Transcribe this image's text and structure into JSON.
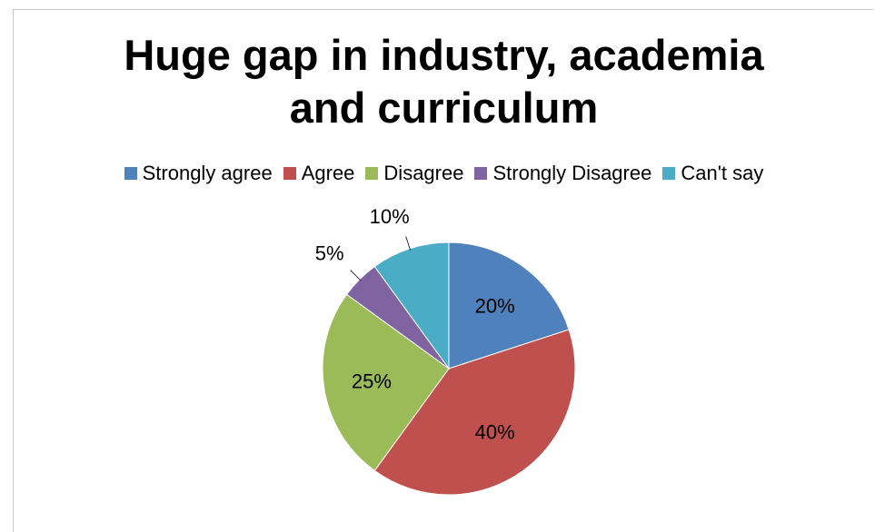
{
  "chart_data": {
    "type": "pie",
    "title_line1": "Huge gap in industry, academia",
    "title_line2": "and curriculum",
    "legend_position": "top",
    "slices": [
      {
        "label": "Strongly agree",
        "value": 20,
        "display": "20%",
        "color": "#4F81BD"
      },
      {
        "label": "Agree",
        "value": 40,
        "display": "40%",
        "color": "#C0504D"
      },
      {
        "label": "Disagree",
        "value": 25,
        "display": "25%",
        "color": "#9BBB59"
      },
      {
        "label": "Strongly Disagree",
        "value": 5,
        "display": "5%",
        "color": "#8064A2"
      },
      {
        "label": "Can't say",
        "value": 10,
        "display": "10%",
        "color": "#4BACC6"
      }
    ]
  }
}
